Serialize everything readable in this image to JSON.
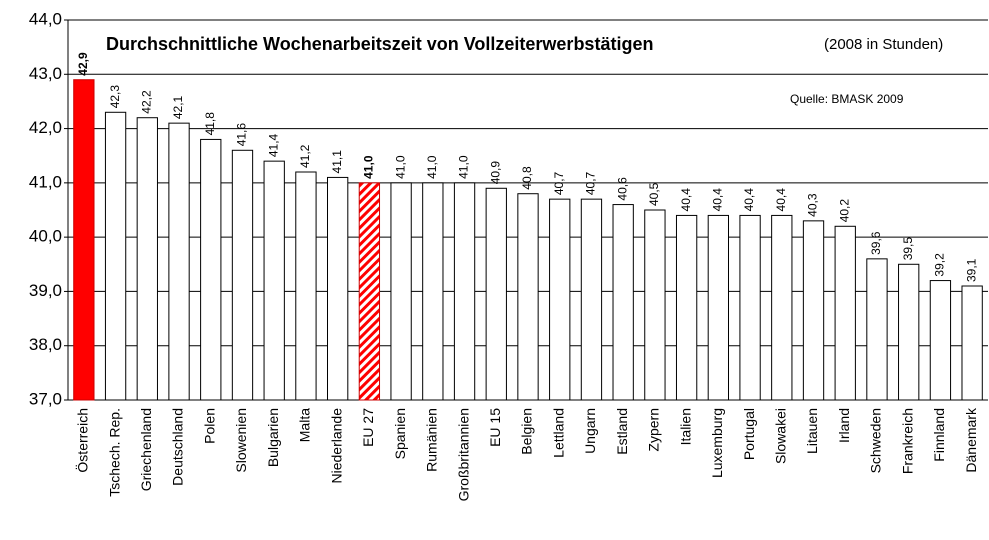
{
  "chart_data": {
    "type": "bar",
    "title": "Durchschnittliche Wochenarbeitszeit von Vollzeiterwerbstätigen",
    "subtitle": "(2008 in Stunden)",
    "annotation": "Quelle: BMASK 2009",
    "categories": [
      "Österreich",
      "Tschech. Rep.",
      "Griechenland",
      "Deutschland",
      "Polen",
      "Slowenien",
      "Bulgarien",
      "Malta",
      "Niederlande",
      "EU 27",
      "Spanien",
      "Rumänien",
      "Großbritannien",
      "EU 15",
      "Belgien",
      "Lettland",
      "Ungarn",
      "Estland",
      "Zypern",
      "Italien",
      "Luxemburg",
      "Portugal",
      "Slowakei",
      "Litauen",
      "Irland",
      "Schweden",
      "Frankreich",
      "Finnland",
      "Dänemark"
    ],
    "values": [
      42.9,
      42.3,
      42.2,
      42.1,
      41.8,
      41.6,
      41.4,
      41.2,
      41.1,
      41.0,
      41.0,
      41.0,
      41.0,
      40.9,
      40.8,
      40.7,
      40.7,
      40.6,
      40.5,
      40.4,
      40.4,
      40.4,
      40.4,
      40.3,
      40.2,
      39.6,
      39.5,
      39.2,
      39.1
    ],
    "value_labels": [
      "42,9",
      "42,3",
      "42,2",
      "42,1",
      "41,8",
      "41,6",
      "41,4",
      "41,2",
      "41,1",
      "41,0",
      "41,0",
      "41,0",
      "41,0",
      "40,9",
      "40,8",
      "40,7",
      "40,7",
      "40,6",
      "40,5",
      "40,4",
      "40,4",
      "40,4",
      "40,4",
      "40,3",
      "40,2",
      "39,6",
      "39,5",
      "39,2",
      "39,1"
    ],
    "colors": [
      "#ff0000",
      "#ffffff",
      "#ffffff",
      "#ffffff",
      "#ffffff",
      "#ffffff",
      "#ffffff",
      "#ffffff",
      "#ffffff",
      "#ff0000",
      "#ffffff",
      "#ffffff",
      "#ffffff",
      "#ffffff",
      "#ffffff",
      "#ffffff",
      "#ffffff",
      "#ffffff",
      "#ffffff",
      "#ffffff",
      "#ffffff",
      "#ffffff",
      "#ffffff",
      "#ffffff",
      "#ffffff",
      "#ffffff",
      "#ffffff",
      "#ffffff",
      "#ffffff"
    ],
    "hatched": [
      "EU 27"
    ],
    "ylim": [
      37,
      44
    ],
    "yticks": [
      {
        "value": 37,
        "label": "37,0"
      },
      {
        "value": 38,
        "label": "38,0"
      },
      {
        "value": 39,
        "label": "39,0"
      },
      {
        "value": 40,
        "label": "40,0"
      },
      {
        "value": 41,
        "label": "41,0"
      },
      {
        "value": 42,
        "label": "42,0"
      },
      {
        "value": 43,
        "label": "43,0"
      },
      {
        "value": 44,
        "label": "44,0"
      }
    ],
    "grid": true
  }
}
